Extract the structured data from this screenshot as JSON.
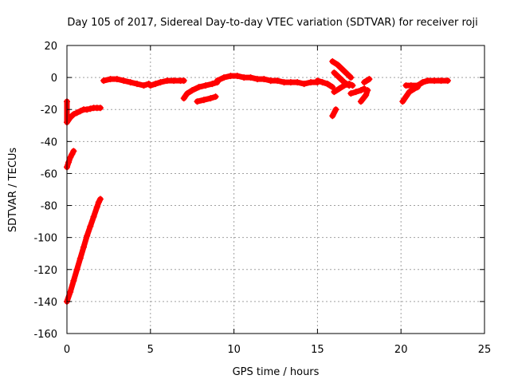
{
  "chart_data": {
    "type": "scatter",
    "title": "Day 105 of 2017, Sidereal Day-to-day VTEC variation (SDTVAR) for receiver roji",
    "xlabel": "GPS time / hours",
    "ylabel": "SDTVAR / TECUs",
    "xlim": [
      0,
      25
    ],
    "ylim": [
      -160,
      20
    ],
    "xticks": [
      0,
      5,
      10,
      15,
      20,
      25
    ],
    "yticks": [
      -160,
      -140,
      -120,
      -100,
      -80,
      -60,
      -40,
      -20,
      0,
      20
    ],
    "grid": true,
    "legend": "none",
    "series": [
      {
        "color": "#ff0000",
        "marker": "plus",
        "segments": [
          [
            [
              0.0,
              -15
            ],
            [
              0.0,
              -28
            ],
            [
              0.2,
              -25
            ],
            [
              0.4,
              -23
            ],
            [
              0.6,
              -22
            ],
            [
              0.8,
              -21
            ],
            [
              1.0,
              -20
            ],
            [
              1.2,
              -20
            ],
            [
              1.4,
              -19.5
            ],
            [
              1.6,
              -19
            ],
            [
              1.8,
              -19
            ],
            [
              2.0,
              -19
            ]
          ],
          [
            [
              0.0,
              -56
            ],
            [
              0.1,
              -53
            ],
            [
              0.2,
              -50
            ],
            [
              0.3,
              -48
            ],
            [
              0.4,
              -46
            ]
          ],
          [
            [
              0.0,
              -140
            ],
            [
              0.2,
              -134
            ],
            [
              0.4,
              -127
            ],
            [
              0.6,
              -120
            ],
            [
              0.8,
              -113
            ],
            [
              1.0,
              -106
            ],
            [
              1.2,
              -99
            ],
            [
              1.4,
              -93
            ],
            [
              1.6,
              -87
            ],
            [
              1.8,
              -81
            ],
            [
              1.9,
              -78
            ],
            [
              2.0,
              -76
            ]
          ],
          [
            [
              2.2,
              -2
            ],
            [
              2.6,
              -1
            ],
            [
              3.0,
              -1
            ],
            [
              3.4,
              -2
            ],
            [
              3.8,
              -3
            ],
            [
              4.2,
              -4
            ],
            [
              4.6,
              -5
            ],
            [
              4.9,
              -4
            ]
          ],
          [
            [
              5.0,
              -5
            ],
            [
              5.3,
              -4
            ],
            [
              5.6,
              -3
            ],
            [
              6.0,
              -2
            ],
            [
              6.4,
              -2
            ],
            [
              6.8,
              -2
            ],
            [
              7.0,
              -2
            ]
          ],
          [
            [
              7.0,
              -13
            ],
            [
              7.2,
              -10
            ],
            [
              7.5,
              -8
            ],
            [
              7.9,
              -6
            ],
            [
              8.3,
              -5
            ],
            [
              8.7,
              -4
            ],
            [
              9.0,
              -3
            ]
          ],
          [
            [
              7.8,
              -15
            ],
            [
              8.2,
              -14
            ],
            [
              8.6,
              -13
            ],
            [
              8.9,
              -12
            ]
          ],
          [
            [
              9.0,
              -2
            ],
            [
              9.4,
              0
            ],
            [
              9.8,
              1
            ],
            [
              10.2,
              1
            ],
            [
              10.6,
              0
            ],
            [
              11.0,
              0
            ],
            [
              11.4,
              -1
            ],
            [
              11.8,
              -1
            ],
            [
              12.2,
              -2
            ]
          ],
          [
            [
              12.2,
              -2
            ],
            [
              12.6,
              -2
            ],
            [
              13.0,
              -3
            ],
            [
              13.4,
              -3
            ],
            [
              13.8,
              -3
            ],
            [
              14.2,
              -4
            ],
            [
              14.6,
              -3
            ],
            [
              15.0,
              -3
            ]
          ],
          [
            [
              15.0,
              -2
            ],
            [
              15.3,
              -3
            ],
            [
              15.6,
              -4
            ],
            [
              15.9,
              -6
            ]
          ],
          [
            [
              15.9,
              -24
            ],
            [
              16.1,
              -20
            ]
          ],
          [
            [
              15.9,
              10
            ],
            [
              16.2,
              8
            ],
            [
              16.5,
              5
            ],
            [
              16.8,
              2
            ],
            [
              17.0,
              0
            ]
          ],
          [
            [
              16.0,
              3
            ],
            [
              16.3,
              0
            ],
            [
              16.6,
              -3
            ],
            [
              16.9,
              -5
            ]
          ],
          [
            [
              16.0,
              -9
            ],
            [
              16.3,
              -7
            ],
            [
              16.6,
              -5
            ],
            [
              16.9,
              -4
            ],
            [
              17.1,
              -5
            ]
          ],
          [
            [
              17.0,
              -10
            ],
            [
              17.3,
              -9
            ],
            [
              17.6,
              -8
            ],
            [
              17.8,
              -7
            ]
          ],
          [
            [
              17.6,
              -15
            ],
            [
              17.9,
              -11
            ],
            [
              18.0,
              -8
            ]
          ],
          [
            [
              17.8,
              -3
            ],
            [
              18.1,
              -1
            ]
          ],
          [
            [
              20.1,
              -15
            ],
            [
              20.3,
              -12
            ],
            [
              20.5,
              -9
            ],
            [
              20.8,
              -7
            ],
            [
              21.0,
              -6
            ]
          ],
          [
            [
              20.3,
              -5
            ],
            [
              20.6,
              -5
            ],
            [
              21.0,
              -5
            ],
            [
              21.3,
              -3
            ],
            [
              21.6,
              -2
            ],
            [
              22.0,
              -2
            ],
            [
              22.4,
              -2
            ],
            [
              22.8,
              -2
            ]
          ]
        ]
      }
    ]
  }
}
